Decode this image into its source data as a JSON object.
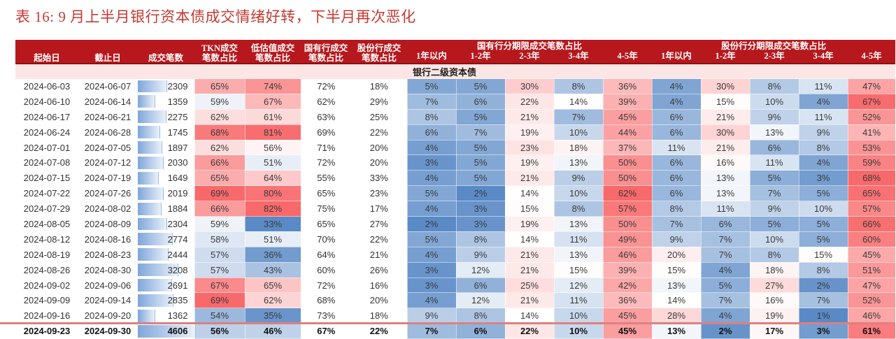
{
  "title": "表 16: 9 月上半月银行资本债成交情绪好转，下半月再次恶化",
  "percent_suffix": "%",
  "colors": {
    "header_bg": "#B6181D",
    "header_text": "#FFFFFF",
    "title_text": "#C53B32",
    "section_bg": "#FBE6E5",
    "section_border": "#8E1014",
    "heat_low": "#5A8AC6",
    "heat_mid": "#FFFFFF",
    "heat_high": "#F8696B",
    "databar_fill_left": "#7FA6DA",
    "databar_fill_right": "#EAF1F9",
    "databar_border": "#9FBCE2",
    "bottom_line": "#DD8080",
    "body_text": "#333333"
  },
  "heatmap": {
    "scales": {
      "tkn": {
        "min": 50,
        "mid": 60,
        "max": 69
      },
      "low_valuation": {
        "min": 33,
        "mid": 54,
        "max": 82
      },
      "state_maturity": {
        "min": 2,
        "mid": 14,
        "max": 62
      },
      "share_maturity": {
        "min": 1,
        "mid": 14,
        "max": 68
      }
    }
  },
  "databar": {
    "max": 4606
  },
  "table": {
    "column_headers": [
      "起始日",
      "截止日",
      "成交笔数",
      "TKN成交\n笔数占比",
      "低估值成交\n笔数占比",
      "国有行成交\n笔数占比",
      "股份行成交\n笔数占比"
    ],
    "group_headers": [
      {
        "label": "国有行分期限成交笔数占比",
        "sub": [
          "1年以内",
          "1-2年",
          "2-3年",
          "3-4年",
          "4-5年"
        ]
      },
      {
        "label": "股份行分期限成交笔数占比",
        "sub": [
          "1年以内",
          "1-2年",
          "2-3年",
          "3-4年",
          "4-5年"
        ]
      }
    ],
    "section_label": "银行二级资本债",
    "rows": [
      {
        "start": "2024-06-03",
        "end": "2024-06-07",
        "count": 2309,
        "tkn": 65,
        "low_val": 74,
        "state": 72,
        "share": 18,
        "state_maturity": [
          5,
          5,
          30,
          8,
          36
        ],
        "share_maturity": [
          4,
          30,
          8,
          11,
          47
        ]
      },
      {
        "start": "2024-06-10",
        "end": "2024-06-14",
        "count": 1359,
        "tkn": 59,
        "low_val": 67,
        "state": 62,
        "share": 29,
        "state_maturity": [
          7,
          6,
          22,
          14,
          39
        ],
        "share_maturity": [
          4,
          15,
          10,
          4,
          67
        ]
      },
      {
        "start": "2024-06-17",
        "end": "2024-06-21",
        "count": 2275,
        "tkn": 62,
        "low_val": 61,
        "state": 63,
        "share": 25,
        "state_maturity": [
          8,
          5,
          21,
          7,
          45
        ],
        "share_maturity": [
          6,
          21,
          9,
          11,
          52
        ]
      },
      {
        "start": "2024-06-24",
        "end": "2024-06-28",
        "count": 1745,
        "tkn": 68,
        "low_val": 81,
        "state": 69,
        "share": 22,
        "state_maturity": [
          6,
          7,
          19,
          10,
          44
        ],
        "share_maturity": [
          6,
          30,
          13,
          9,
          41
        ]
      },
      {
        "start": "2024-07-01",
        "end": "2024-07-05",
        "count": 1897,
        "tkn": 62,
        "low_val": 56,
        "state": 71,
        "share": 20,
        "state_maturity": [
          4,
          5,
          23,
          18,
          37
        ],
        "share_maturity": [
          11,
          21,
          6,
          8,
          53
        ]
      },
      {
        "start": "2024-07-08",
        "end": "2024-07-12",
        "count": 2030,
        "tkn": 66,
        "low_val": 51,
        "state": 72,
        "share": 20,
        "state_maturity": [
          3,
          5,
          19,
          13,
          50
        ],
        "share_maturity": [
          6,
          16,
          11,
          4,
          59
        ]
      },
      {
        "start": "2024-07-15",
        "end": "2024-07-19",
        "count": 1649,
        "tkn": 65,
        "low_val": 64,
        "state": 55,
        "share": 33,
        "state_maturity": [
          4,
          5,
          21,
          9,
          50
        ],
        "share_maturity": [
          6,
          13,
          5,
          3,
          68
        ]
      },
      {
        "start": "2024-07-22",
        "end": "2024-07-26",
        "count": 2019,
        "tkn": 69,
        "low_val": 80,
        "state": 65,
        "share": 23,
        "state_maturity": [
          5,
          2,
          14,
          10,
          62
        ],
        "share_maturity": [
          6,
          13,
          7,
          5,
          65
        ]
      },
      {
        "start": "2024-07-29",
        "end": "2024-08-02",
        "count": 1884,
        "tkn": 66,
        "low_val": 82,
        "state": 75,
        "share": 17,
        "state_maturity": [
          4,
          3,
          15,
          8,
          57
        ],
        "share_maturity": [
          8,
          11,
          9,
          10,
          57
        ]
      },
      {
        "start": "2024-08-05",
        "end": "2024-08-09",
        "count": 2304,
        "tkn": 59,
        "low_val": 33,
        "state": 65,
        "share": 27,
        "state_maturity": [
          2,
          3,
          19,
          13,
          50
        ],
        "share_maturity": [
          7,
          6,
          5,
          5,
          66
        ]
      },
      {
        "start": "2024-08-12",
        "end": "2024-08-16",
        "count": 2774,
        "tkn": 58,
        "low_val": 51,
        "state": 70,
        "share": 22,
        "state_maturity": [
          5,
          8,
          14,
          11,
          49
        ],
        "share_maturity": [
          9,
          7,
          10,
          5,
          60
        ]
      },
      {
        "start": "2024-08-19",
        "end": "2024-08-23",
        "count": 2444,
        "tkn": 57,
        "low_val": 36,
        "state": 64,
        "share": 21,
        "state_maturity": [
          4,
          9,
          21,
          13,
          46
        ],
        "share_maturity": [
          20,
          7,
          8,
          15,
          45
        ]
      },
      {
        "start": "2024-08-26",
        "end": "2024-08-30",
        "count": 3208,
        "tkn": 57,
        "low_val": 43,
        "state": 60,
        "share": 26,
        "state_maturity": [
          3,
          12,
          21,
          15,
          39
        ],
        "share_maturity": [
          15,
          4,
          18,
          8,
          51
        ]
      },
      {
        "start": "2024-09-02",
        "end": "2024-09-06",
        "count": 2691,
        "tkn": 67,
        "low_val": 65,
        "state": 72,
        "share": 16,
        "state_maturity": [
          3,
          6,
          25,
          12,
          42
        ],
        "share_maturity": [
          13,
          5,
          27,
          2,
          47
        ]
      },
      {
        "start": "2024-09-09",
        "end": "2024-09-14",
        "count": 2835,
        "tkn": 69,
        "low_val": 62,
        "state": 68,
        "share": 20,
        "state_maturity": [
          4,
          12,
          21,
          11,
          36
        ],
        "share_maturity": [
          14,
          7,
          16,
          7,
          52
        ]
      },
      {
        "start": "2024-09-16",
        "end": "2024-09-20",
        "count": 1362,
        "tkn": 54,
        "low_val": 35,
        "state": 73,
        "share": 18,
        "state_maturity": [
          9,
          8,
          14,
          10,
          45
        ],
        "share_maturity": [
          28,
          4,
          19,
          1,
          46
        ]
      },
      {
        "start": "2024-09-23",
        "end": "2024-09-30",
        "count": 4606,
        "tkn": 56,
        "low_val": 46,
        "state": 67,
        "share": 22,
        "state_maturity": [
          7,
          6,
          22,
          10,
          45
        ],
        "share_maturity": [
          13,
          2,
          17,
          3,
          61
        ],
        "bold": true
      }
    ]
  }
}
